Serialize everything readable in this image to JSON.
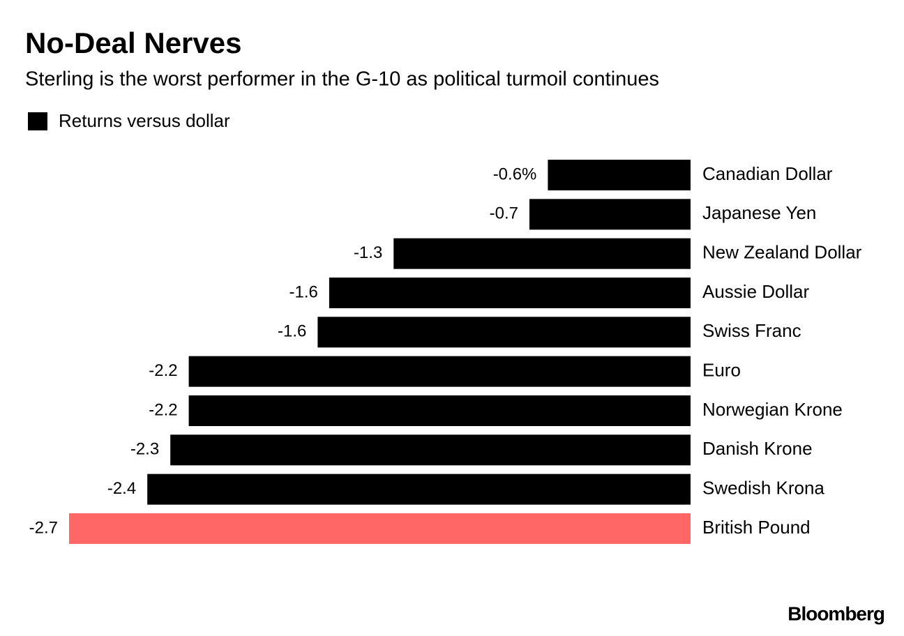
{
  "chart_data": {
    "type": "hbar",
    "title": "No-Deal Nerves",
    "subtitle": "Sterling is the worst performer in the G-10 as political turmoil continues",
    "categories": [
      "Canadian Dollar",
      "Japanese Yen",
      "New Zealand Dollar",
      "Aussie Dollar",
      "Swiss Franc",
      "Euro",
      "Norwegian Krone",
      "Danish Krone",
      "Swedish Krona",
      "British Pound"
    ],
    "series": [
      {
        "name": "Returns versus dollar",
        "color": "#000000",
        "colors": [
          "#000000",
          "#000000",
          "#000000",
          "#000000",
          "#000000",
          "#000000",
          "#000000",
          "#000000",
          "#000000",
          "#ff6666"
        ],
        "values": [
          -0.62,
          -0.7,
          -1.29,
          -1.57,
          -1.62,
          -2.18,
          -2.18,
          -2.26,
          -2.36,
          -2.7
        ],
        "value_labels": [
          "-0.6%",
          "-0.7",
          "-1.3",
          "-1.6",
          "-1.6",
          "-2.2",
          "-2.2",
          "-2.3",
          "-2.4",
          "-2.7"
        ]
      }
    ],
    "xlim": [
      -2.7,
      0
    ],
    "source": "Bloomberg"
  }
}
